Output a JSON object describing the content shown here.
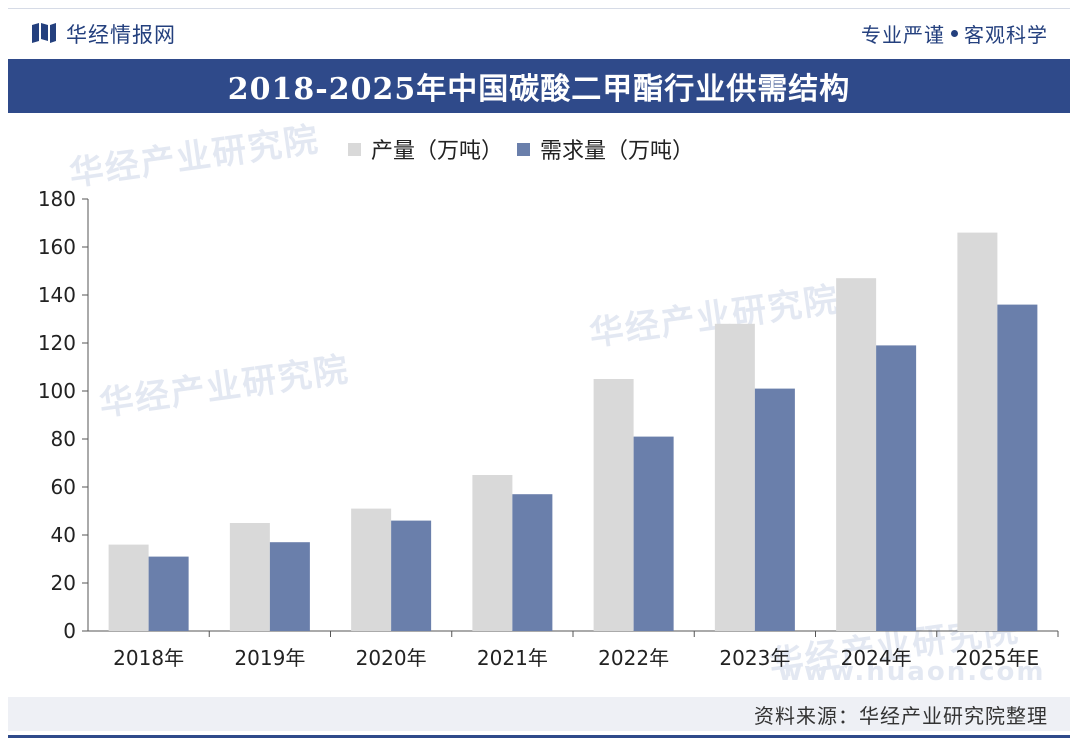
{
  "header": {
    "brand": "华经情报网",
    "slogan_left": "专业严谨",
    "slogan_right": "客观科学"
  },
  "footer": {
    "source": "资料来源：华经产业研究院整理"
  },
  "watermark": {
    "text": "华经产业研究院",
    "url": "www.huaon.com"
  },
  "colors": {
    "brand": "#2f4a8a",
    "production": "#d9d9d9",
    "demand": "#6a7fab"
  },
  "chart_data": {
    "type": "bar",
    "title": "2018-2025年中国碳酸二甲酯行业供需结构",
    "categories": [
      "2018年",
      "2019年",
      "2020年",
      "2021年",
      "2022年",
      "2023年",
      "2024年",
      "2025年E"
    ],
    "series": [
      {
        "name": "产量（万吨）",
        "values": [
          36,
          45,
          51,
          65,
          105,
          128,
          147,
          166
        ]
      },
      {
        "name": "需求量（万吨）",
        "values": [
          31,
          37,
          46,
          57,
          81,
          101,
          119,
          136
        ]
      }
    ],
    "ylim": [
      0,
      180
    ],
    "yticks": [
      0,
      20,
      40,
      60,
      80,
      100,
      120,
      140,
      160,
      180
    ],
    "xlabel": "",
    "ylabel": "",
    "grid": false,
    "legend": "top"
  }
}
